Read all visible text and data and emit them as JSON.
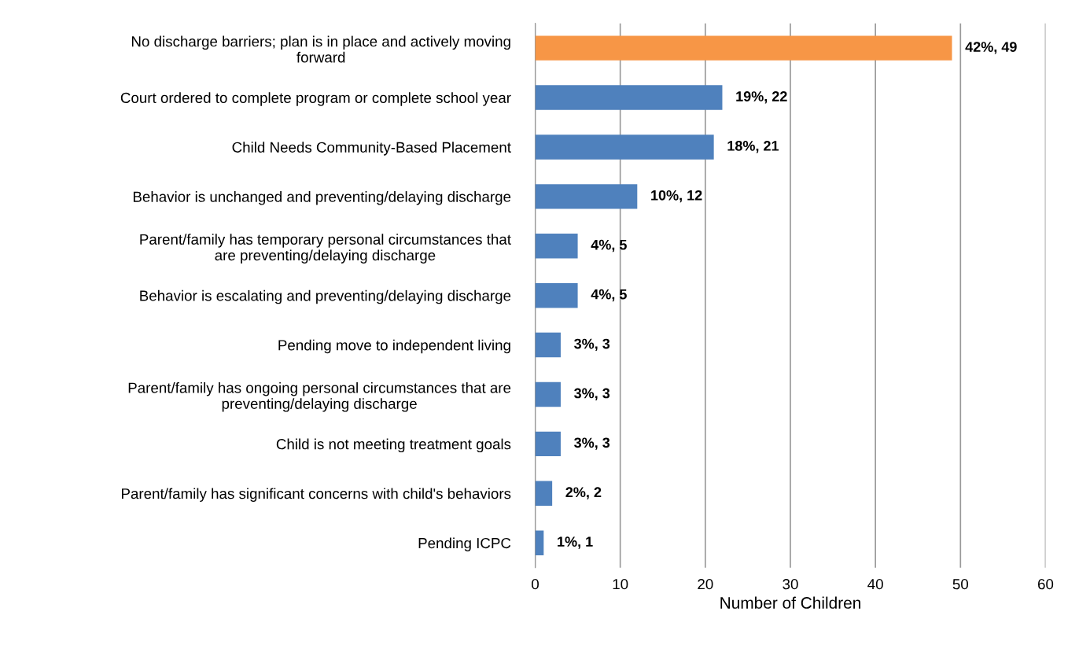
{
  "chart_data": {
    "type": "bar",
    "orientation": "horizontal",
    "xlabel": "Number of Children",
    "categories": [
      "No discharge barriers; plan is in place and actively moving\nforward",
      "Court ordered to complete program or complete school year",
      "Child Needs Community-Based Placement",
      "Behavior is unchanged and preventing/delaying discharge",
      "Parent/family has temporary personal circumstances that\nare preventing/delaying discharge",
      "Behavior is escalating and preventing/delaying discharge",
      "Pending move to independent living",
      "Parent/family has ongoing personal circumstances that are\npreventing/delaying discharge",
      "Child is not meeting treatment goals",
      "Parent/family has significant concerns with child's behaviors",
      "Pending ICPC"
    ],
    "values": [
      49,
      22,
      21,
      12,
      5,
      5,
      3,
      3,
      3,
      2,
      1
    ],
    "colors": [
      "#f79646",
      "#4f81bd",
      "#4f81bd",
      "#4f81bd",
      "#4f81bd",
      "#4f81bd",
      "#4f81bd",
      "#4f81bd",
      "#4f81bd",
      "#4f81bd",
      "#4f81bd"
    ],
    "value_labels": [
      "42%, 49",
      "19%, 22",
      "18%, 21",
      "10%, 12",
      "4%, 5",
      "4%, 5",
      "3%, 3",
      "3%, 3",
      "3%, 3",
      "2%, 2",
      "1%, 1"
    ],
    "xlim": [
      0,
      60
    ],
    "xticks": [
      0,
      10,
      20,
      30,
      40,
      50,
      60
    ],
    "grid": "x",
    "legend": false
  }
}
